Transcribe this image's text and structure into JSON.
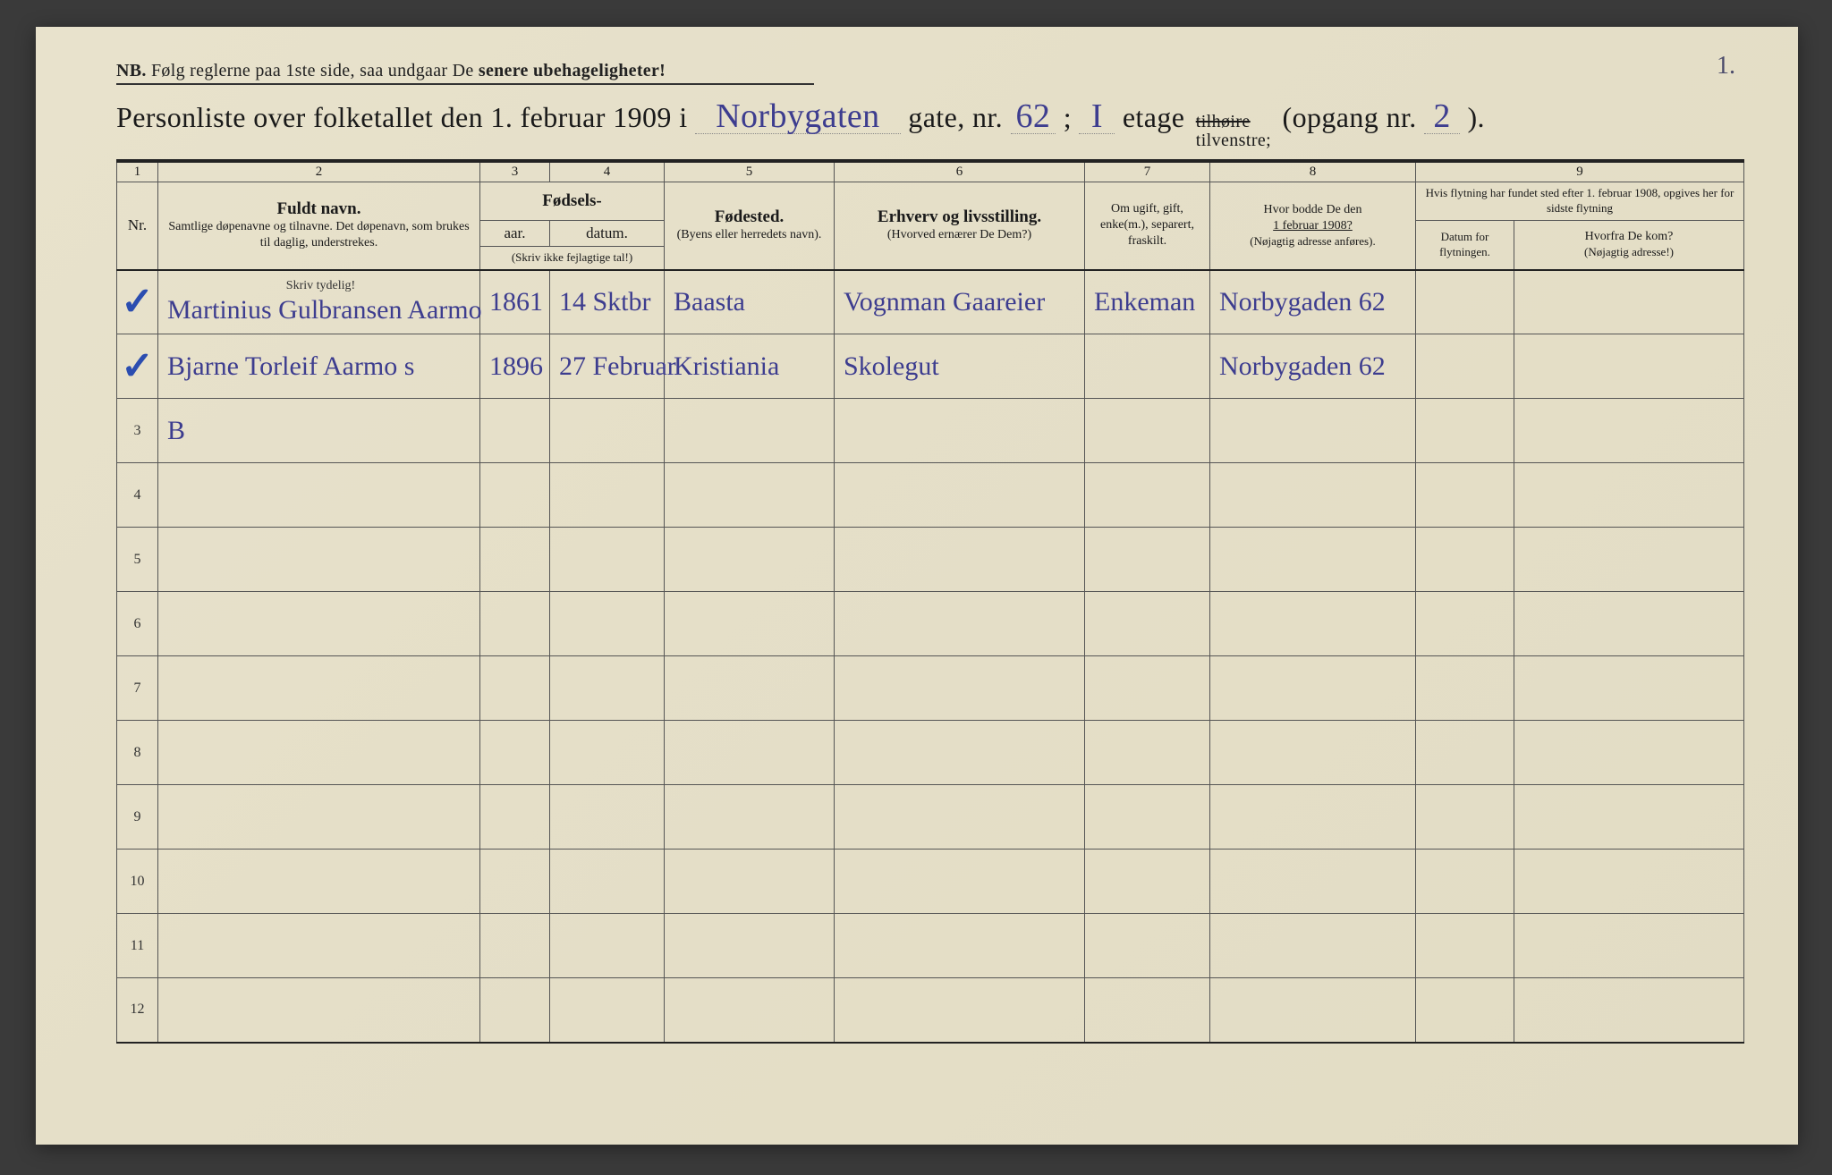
{
  "page_corner_number": "1.",
  "nb": {
    "prefix": "NB.",
    "text_before": "Følg reglerne paa 1ste side, saa undgaar De",
    "text_bold": "senere ubehageligheter!"
  },
  "title": {
    "part1": "Personliste over folketallet den 1. februar 1909 i",
    "street_hw": "Norbygaten",
    "part2": "gate, nr.",
    "gate_nr_hw": "62",
    "semicolon1": ";",
    "etage_hw": "I",
    "part3": "etage",
    "tilhoire": "tilhøire",
    "tilvenstre": "tilvenstre;",
    "part4": "(opgang nr.",
    "opgang_hw": "2",
    "part5": ")."
  },
  "columns": {
    "numbers": [
      "1",
      "2",
      "3",
      "4",
      "5",
      "6",
      "7",
      "8",
      "9"
    ],
    "c1": "Nr.",
    "c2_main": "Fuldt navn.",
    "c2_sub": "Samtlige døpenavne og tilnavne. Det døpenavn, som brukes til daglig, understrekes.",
    "c34_group": "Fødsels-",
    "c3": "aar.",
    "c4": "datum.",
    "c34_note": "(Skriv ikke fejlagtige tal!)",
    "c5_main": "Fødested.",
    "c5_sub": "(Byens eller herredets navn).",
    "c6_main": "Erhverv og livsstilling.",
    "c6_sub": "(Hvorved ernærer De Dem?)",
    "c7": "Om ugift, gift, enke(m.), separert, fraskilt.",
    "c8_line1": "Hvor bodde De den",
    "c8_line2": "1 februar 1908?",
    "c8_sub": "(Nøjagtig adresse anføres).",
    "c9_top": "Hvis flytning har fundet sted efter 1. februar 1908, opgives her for sidste flytning",
    "c9a": "Datum for flytningen.",
    "c9b_main": "Hvorfra De kom?",
    "c9b_sub": "(Nøjagtig adresse!)",
    "skriv_tydelig": "Skriv tydelig!"
  },
  "rows": [
    {
      "nr": "1",
      "mark": "✓",
      "name": "Martinius Gulbransen Aarmo",
      "year": "1861",
      "date": "14 Sktbr",
      "birthplace": "Baasta",
      "occupation": "Vognman Gaareier",
      "marital": "Enkeman",
      "addr1908": "Norbygaden 62",
      "move_date": "",
      "move_from": ""
    },
    {
      "nr": "2",
      "mark": "✓",
      "name": "Bjarne Torleif Aarmo   s",
      "year": "1896",
      "date": "27 Februar",
      "birthplace": "Kristiania",
      "occupation": "Skolegut",
      "marital": "",
      "addr1908": "Norbygaden 62",
      "move_date": "",
      "move_from": ""
    },
    {
      "nr": "3",
      "mark": "",
      "name": "B",
      "year": "",
      "date": "",
      "birthplace": "",
      "occupation": "",
      "marital": "",
      "addr1908": "",
      "move_date": "",
      "move_from": ""
    },
    {
      "nr": "4"
    },
    {
      "nr": "5"
    },
    {
      "nr": "6"
    },
    {
      "nr": "7"
    },
    {
      "nr": "8"
    },
    {
      "nr": "9"
    },
    {
      "nr": "10"
    },
    {
      "nr": "11"
    },
    {
      "nr": "12"
    }
  ],
  "colors": {
    "paper": "#e5dfc8",
    "ink_print": "#1a1a1a",
    "ink_handwriting": "#3d3d8f",
    "checkmark": "#2b4db0",
    "border": "#555555"
  }
}
